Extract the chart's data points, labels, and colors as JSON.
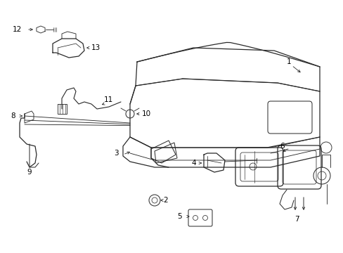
{
  "bg_color": "#ffffff",
  "line_color": "#2a2a2a",
  "text_color": "#000000",
  "fig_width": 4.89,
  "fig_height": 3.6,
  "dpi": 100
}
